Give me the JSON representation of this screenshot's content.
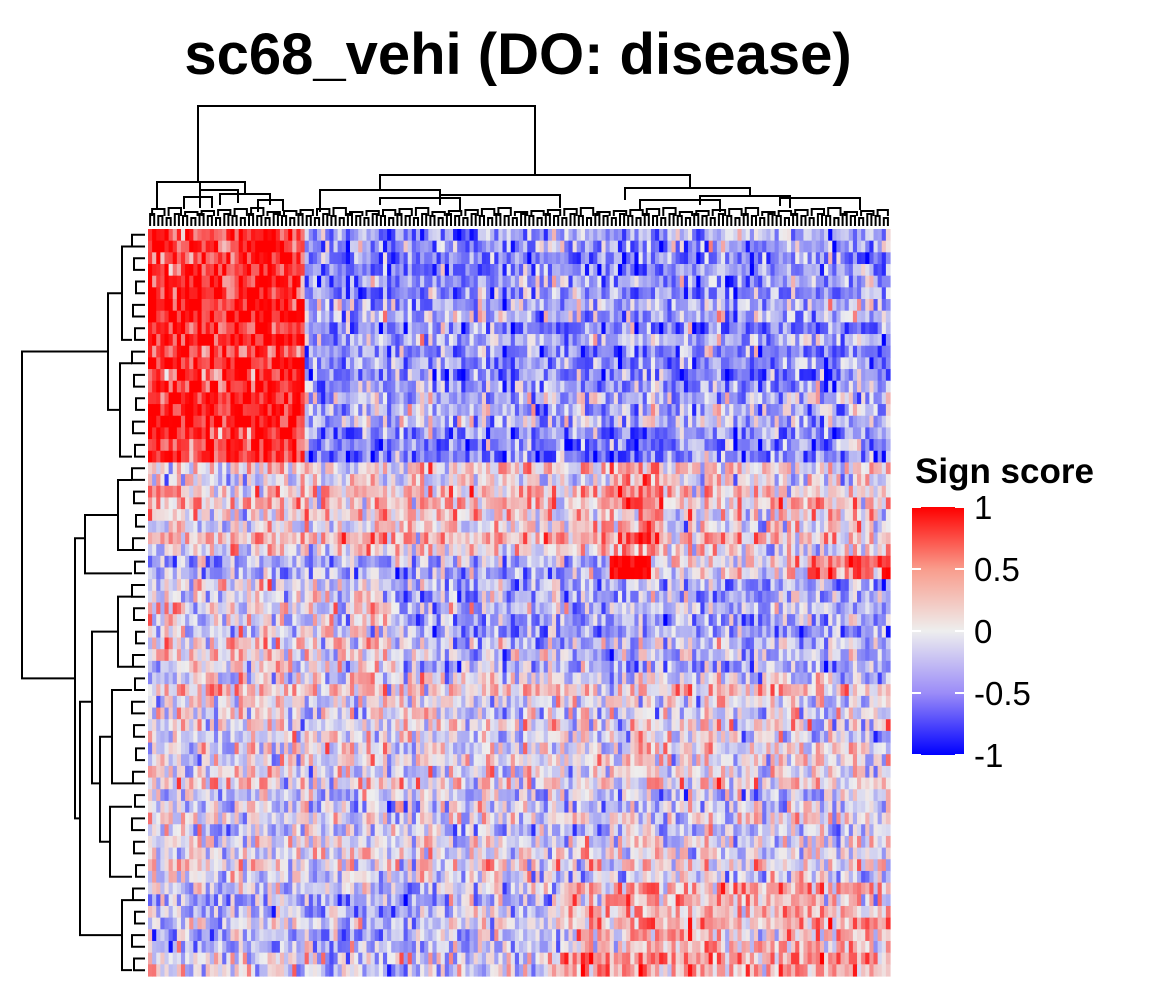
{
  "chart_data": {
    "type": "heatmap",
    "title": "sc68_vehi (DO: disease)",
    "xlabel": "",
    "ylabel": "",
    "n_rows": 64,
    "n_cols": 180,
    "value_range": [
      -1,
      1
    ],
    "row_dendrogram": true,
    "column_dendrogram": true,
    "legend": {
      "title": "Sign score",
      "placement": "right",
      "ticks": [
        1,
        0.5,
        0,
        -0.5,
        -1
      ],
      "tick_labels": [
        "1",
        "0.5",
        "0",
        "-0.5",
        "-1"
      ]
    },
    "colors": {
      "low": "#0000ff",
      "mid": "#eeeeee",
      "high": "#ff0000"
    },
    "row_blocks": [
      {
        "rows": [
          0,
          20
        ],
        "segments": [
          {
            "cols": [
              0,
              38
            ],
            "mean": 0.85
          },
          {
            "cols": [
              38,
              180
            ],
            "mean": -0.35
          }
        ]
      },
      {
        "rows": [
          20,
          28
        ],
        "segments": [
          {
            "cols": [
              0,
              110
            ],
            "mean": 0.1
          },
          {
            "cols": [
              110,
              125
            ],
            "mean": 0.45
          },
          {
            "cols": [
              125,
              180
            ],
            "mean": 0.05
          }
        ]
      },
      {
        "rows": [
          28,
          30
        ],
        "segments": [
          {
            "cols": [
              0,
              112
            ],
            "mean": -0.35
          },
          {
            "cols": [
              112,
              122
            ],
            "mean": 0.95
          },
          {
            "cols": [
              122,
              160
            ],
            "mean": -0.1
          },
          {
            "cols": [
              160,
              180
            ],
            "mean": 0.5
          }
        ]
      },
      {
        "rows": [
          30,
          38
        ],
        "segments": [
          {
            "cols": [
              0,
              60
            ],
            "mean": 0.05
          },
          {
            "cols": [
              60,
              180
            ],
            "mean": -0.25
          }
        ]
      },
      {
        "rows": [
          38,
          48
        ],
        "segments": [
          {
            "cols": [
              0,
              180
            ],
            "mean": 0.05
          }
        ]
      },
      {
        "rows": [
          48,
          56
        ],
        "segments": [
          {
            "cols": [
              0,
              180
            ],
            "mean": -0.05
          }
        ]
      },
      {
        "rows": [
          56,
          64
        ],
        "segments": [
          {
            "cols": [
              0,
              100
            ],
            "mean": -0.15
          },
          {
            "cols": [
              100,
              180
            ],
            "mean": 0.3
          }
        ]
      }
    ]
  }
}
